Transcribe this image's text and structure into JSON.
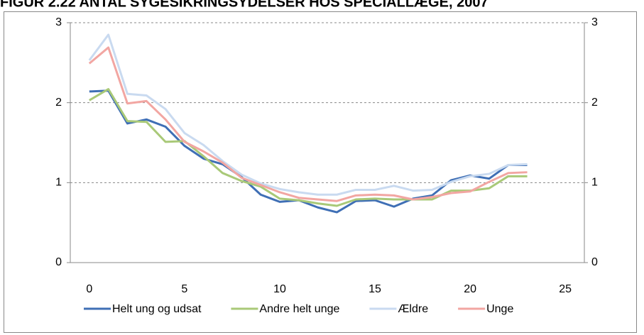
{
  "chart_data": {
    "type": "line",
    "title": "FIGUR 2.22 ANTAL SYGESIKRINGSYDELSER HOS SPECIALLÆGE, 2007",
    "x": [
      0,
      1,
      2,
      3,
      4,
      5,
      6,
      7,
      8,
      9,
      10,
      11,
      12,
      13,
      14,
      15,
      16,
      17,
      18,
      19,
      20,
      21,
      22,
      23
    ],
    "series": [
      {
        "name": "Helt ung og udsat",
        "color": "#3f6fb5",
        "values": [
          2.14,
          2.15,
          1.74,
          1.79,
          1.7,
          1.46,
          1.3,
          1.23,
          1.07,
          0.85,
          0.76,
          0.78,
          0.69,
          0.63,
          0.77,
          0.78,
          0.7,
          0.8,
          0.84,
          1.03,
          1.09,
          1.05,
          1.22,
          1.22
        ]
      },
      {
        "name": "Andre helt unge",
        "color": "#a9c978",
        "values": [
          2.03,
          2.17,
          1.77,
          1.76,
          1.51,
          1.52,
          1.33,
          1.12,
          1.02,
          0.95,
          0.8,
          0.78,
          0.74,
          0.71,
          0.79,
          0.8,
          0.79,
          0.79,
          0.79,
          0.9,
          0.9,
          0.93,
          1.08,
          1.08
        ]
      },
      {
        "name": "Ældre",
        "color": "#c9daf0",
        "values": [
          2.53,
          2.85,
          2.11,
          2.09,
          1.92,
          1.62,
          1.47,
          1.27,
          1.1,
          0.99,
          0.92,
          0.88,
          0.85,
          0.85,
          0.91,
          0.91,
          0.96,
          0.9,
          0.91,
          1.01,
          1.08,
          1.11,
          1.22,
          1.23
        ]
      },
      {
        "name": "Unge",
        "color": "#f2a6a2",
        "values": [
          2.49,
          2.69,
          1.99,
          2.02,
          1.79,
          1.51,
          1.39,
          1.25,
          1.06,
          0.97,
          0.88,
          0.81,
          0.79,
          0.77,
          0.84,
          0.85,
          0.84,
          0.79,
          0.82,
          0.87,
          0.89,
          1.01,
          1.12,
          1.13
        ]
      }
    ],
    "xlim": [
      -1,
      26
    ],
    "xticks": [
      0,
      5,
      10,
      15,
      20,
      25
    ],
    "ylim": [
      0,
      3
    ],
    "yticks": [
      0,
      1,
      2,
      3
    ],
    "y2lim": [
      0,
      3
    ],
    "y2ticks": [
      0,
      1,
      2,
      3
    ],
    "grid": true,
    "legend": "bottom"
  }
}
